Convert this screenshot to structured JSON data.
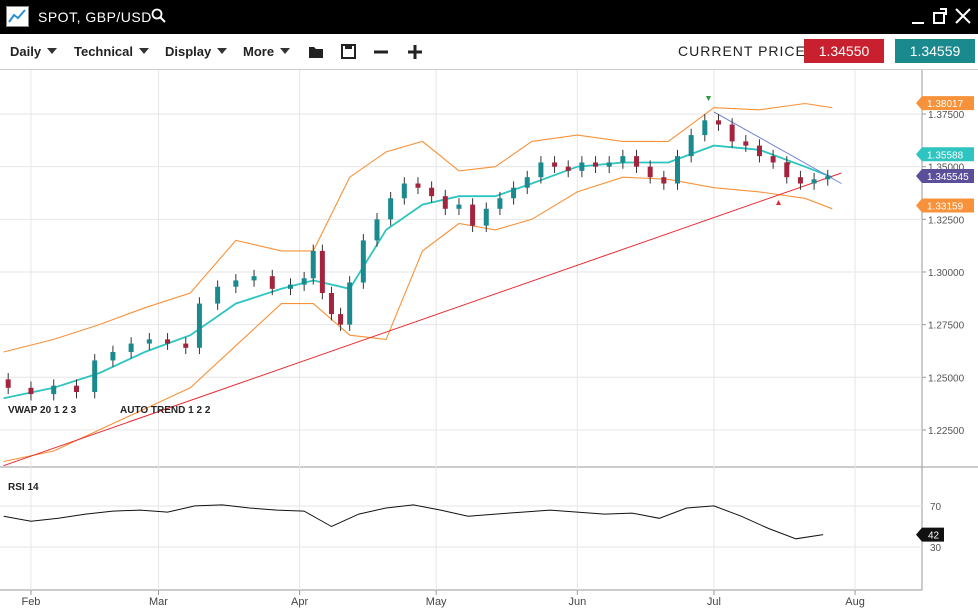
{
  "header": {
    "title": "SPOT, GBP/USD"
  },
  "toolbar": {
    "menus": [
      "Daily",
      "Technical",
      "Display",
      "More"
    ],
    "current_price_label": "CURRENT PRICE:",
    "bid": "1.34550",
    "ask": "1.34559"
  },
  "chart_data": [
    {
      "type": "candlestick",
      "indicator_labels": [
        "VWAP 20 1 2 3",
        "AUTO TREND 1 2 2"
      ],
      "x": [
        -5,
        0,
        5,
        10,
        14,
        18,
        22,
        26,
        30,
        34,
        37,
        41,
        45,
        49,
        53,
        57,
        60,
        62,
        64,
        66,
        68,
        70,
        73,
        76,
        79,
        82,
        85,
        88,
        91,
        94,
        97,
        100,
        103,
        106,
        109,
        112,
        115,
        118,
        121,
        124,
        127,
        130,
        133,
        136,
        139,
        142,
        145,
        148,
        151,
        154,
        157,
        160,
        163,
        166,
        169,
        172,
        175
      ],
      "open": [
        1.249,
        1.245,
        1.242,
        1.246,
        1.243,
        1.258,
        1.262,
        1.266,
        1.268,
        1.266,
        1.264,
        1.285,
        1.293,
        1.296,
        1.298,
        1.292,
        1.294,
        1.297,
        1.31,
        1.29,
        1.28,
        1.275,
        1.295,
        1.315,
        1.325,
        1.335,
        1.342,
        1.34,
        1.336,
        1.33,
        1.332,
        1.322,
        1.33,
        1.335,
        1.34,
        1.345,
        1.352,
        1.35,
        1.348,
        1.352,
        1.35,
        1.352,
        1.355,
        1.35,
        1.345,
        1.342,
        1.355,
        1.365,
        1.372,
        1.37,
        1.362,
        1.36,
        1.355,
        1.352,
        1.345,
        1.342,
        1.344
      ],
      "high": [
        1.252,
        1.248,
        1.249,
        1.249,
        1.261,
        1.265,
        1.269,
        1.271,
        1.271,
        1.269,
        1.288,
        1.296,
        1.299,
        1.301,
        1.301,
        1.297,
        1.3,
        1.313,
        1.313,
        1.293,
        1.283,
        1.298,
        1.318,
        1.328,
        1.338,
        1.345,
        1.345,
        1.343,
        1.339,
        1.335,
        1.335,
        1.333,
        1.338,
        1.343,
        1.348,
        1.355,
        1.355,
        1.353,
        1.355,
        1.355,
        1.355,
        1.358,
        1.358,
        1.353,
        1.348,
        1.358,
        1.368,
        1.375,
        1.375,
        1.373,
        1.365,
        1.363,
        1.358,
        1.355,
        1.348,
        1.347,
        1.3485
      ],
      "low": [
        1.242,
        1.239,
        1.239,
        1.24,
        1.24,
        1.255,
        1.259,
        1.263,
        1.263,
        1.261,
        1.261,
        1.282,
        1.29,
        1.293,
        1.289,
        1.289,
        1.291,
        1.294,
        1.287,
        1.277,
        1.272,
        1.272,
        1.292,
        1.312,
        1.322,
        1.332,
        1.337,
        1.333,
        1.327,
        1.327,
        1.319,
        1.319,
        1.327,
        1.332,
        1.337,
        1.342,
        1.347,
        1.345,
        1.345,
        1.347,
        1.347,
        1.349,
        1.347,
        1.342,
        1.339,
        1.339,
        1.352,
        1.362,
        1.367,
        1.359,
        1.357,
        1.352,
        1.349,
        1.342,
        1.339,
        1.339,
        1.341
      ],
      "close": [
        1.245,
        1.242,
        1.246,
        1.243,
        1.258,
        1.262,
        1.266,
        1.268,
        1.266,
        1.264,
        1.285,
        1.293,
        1.296,
        1.298,
        1.292,
        1.294,
        1.297,
        1.31,
        1.29,
        1.28,
        1.275,
        1.295,
        1.315,
        1.325,
        1.335,
        1.342,
        1.34,
        1.336,
        1.33,
        1.332,
        1.322,
        1.33,
        1.335,
        1.34,
        1.345,
        1.352,
        1.35,
        1.348,
        1.352,
        1.35,
        1.352,
        1.355,
        1.35,
        1.345,
        1.342,
        1.355,
        1.365,
        1.372,
        1.37,
        1.362,
        1.36,
        1.355,
        1.352,
        1.345,
        1.342,
        1.344,
        1.3455
      ],
      "up_color": "#1b8a8e",
      "down_color": "#a3253d",
      "bands": {
        "x": [
          -6,
          5,
          15,
          25,
          35,
          45,
          55,
          62,
          70,
          78,
          86,
          94,
          102,
          110,
          120,
          130,
          140,
          150,
          160,
          170,
          176
        ],
        "upper": [
          1.262,
          1.268,
          1.275,
          1.283,
          1.29,
          1.315,
          1.31,
          1.31,
          1.345,
          1.357,
          1.362,
          1.348,
          1.35,
          1.362,
          1.365,
          1.362,
          1.362,
          1.378,
          1.377,
          1.38,
          1.378
        ],
        "middle": [
          1.24,
          1.245,
          1.252,
          1.262,
          1.27,
          1.285,
          1.292,
          1.296,
          1.292,
          1.32,
          1.332,
          1.336,
          1.336,
          1.342,
          1.35,
          1.352,
          1.352,
          1.36,
          1.358,
          1.35,
          1.345
        ],
        "lower": [
          1.21,
          1.215,
          1.225,
          1.235,
          1.245,
          1.265,
          1.285,
          1.285,
          1.27,
          1.268,
          1.31,
          1.323,
          1.32,
          1.325,
          1.338,
          1.345,
          1.344,
          1.34,
          1.338,
          1.335,
          1.33
        ],
        "band_color": "#f7923a",
        "middle_color": "#2ec4c0"
      },
      "trend_lines": [
        {
          "x": [
            -6,
            178
          ],
          "y": [
            1.208,
            1.347
          ],
          "color": "#e8282e"
        },
        {
          "x": [
            150,
            178
          ],
          "y": [
            1.376,
            1.342
          ],
          "color": "#6f7fd6"
        }
      ],
      "price_labels": [
        {
          "value": 1.38017,
          "color": "#f7923a"
        },
        {
          "value": 1.35588,
          "color": "#2ec4c0"
        },
        {
          "value": 1.345545,
          "color": "#5b4f9a"
        },
        {
          "value": 1.33159,
          "color": "#f7923a"
        }
      ],
      "xlim": [
        -6.8,
        195.7
      ],
      "ylim": [
        1.2074,
        1.3959
      ],
      "yticks": [
        {
          "value": 1.375,
          "label": "1.37500"
        },
        {
          "value": 1.35,
          "label": "1.35000"
        },
        {
          "value": 1.325,
          "label": "1.32500"
        },
        {
          "value": 1.3,
          "label": "1.30000"
        },
        {
          "value": 1.275,
          "label": "1.27500"
        },
        {
          "value": 1.25,
          "label": "1.25000"
        },
        {
          "value": 1.225,
          "label": "1.22500"
        }
      ],
      "grid": true
    },
    {
      "type": "line",
      "indicator_label": "RSI 14",
      "x": [
        -6,
        0,
        6,
        12,
        18,
        24,
        30,
        36,
        42,
        48,
        54,
        60,
        66,
        72,
        78,
        84,
        90,
        96,
        102,
        108,
        114,
        120,
        126,
        132,
        138,
        144,
        150,
        156,
        162,
        168,
        174
      ],
      "values": [
        60,
        55,
        58,
        62,
        65,
        66,
        64,
        70,
        71,
        68,
        66,
        65,
        50,
        62,
        68,
        71,
        66,
        60,
        62,
        64,
        66,
        64,
        62,
        63,
        58,
        68,
        70,
        60,
        48,
        38,
        42
      ],
      "color": "#111",
      "last_value": 42,
      "xlim": [
        -6.8,
        195.7
      ],
      "ylim": [
        -12,
        108
      ],
      "yticks": [
        30,
        70
      ],
      "xticks": [
        {
          "value": 0,
          "label": "Feb"
        },
        {
          "value": 28,
          "label": "Mar"
        },
        {
          "value": 59,
          "label": "Apr"
        },
        {
          "value": 89,
          "label": "May"
        },
        {
          "value": 120,
          "label": "Jun"
        },
        {
          "value": 150,
          "label": "Jul"
        },
        {
          "value": 181,
          "label": "Aug"
        }
      ],
      "grid": true
    }
  ]
}
